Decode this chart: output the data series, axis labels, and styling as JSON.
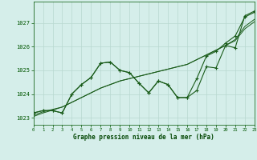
{
  "bg_color": "#d5eeea",
  "grid_color": "#b8d8d0",
  "line_color": "#1a5c1a",
  "marker_color": "#1a5c1a",
  "xlabel": "Graphe pression niveau de la mer (hPa)",
  "xlabel_color": "#004400",
  "tick_color": "#005500",
  "xlim": [
    0,
    23
  ],
  "ylim": [
    1022.7,
    1027.9
  ],
  "yticks": [
    1023,
    1024,
    1025,
    1026,
    1027
  ],
  "xticks": [
    0,
    1,
    2,
    3,
    4,
    5,
    6,
    7,
    8,
    9,
    10,
    11,
    12,
    13,
    14,
    15,
    16,
    17,
    18,
    19,
    20,
    21,
    22,
    23
  ],
  "line1": [
    1023.2,
    1023.3,
    1023.3,
    1023.2,
    1024.0,
    1024.4,
    1024.7,
    1025.3,
    1025.35,
    1025.0,
    1024.9,
    1024.45,
    1024.05,
    1024.55,
    1024.4,
    1023.85,
    1023.85,
    1024.15,
    1025.15,
    1025.1,
    1026.05,
    1025.95,
    1027.3,
    1027.5
  ],
  "line2": [
    1023.2,
    1023.3,
    1023.3,
    1023.2,
    1024.0,
    1024.4,
    1024.7,
    1025.3,
    1025.35,
    1025.0,
    1024.9,
    1024.45,
    1024.05,
    1024.55,
    1024.4,
    1023.85,
    1023.85,
    1024.65,
    1025.6,
    1025.8,
    1026.15,
    1026.45,
    1027.25,
    1027.45
  ],
  "line3_trend": [
    1023.1,
    1023.25,
    1023.35,
    1023.45,
    1023.65,
    1023.85,
    1024.05,
    1024.25,
    1024.4,
    1024.55,
    1024.65,
    1024.75,
    1024.85,
    1024.95,
    1025.05,
    1025.15,
    1025.25,
    1025.45,
    1025.65,
    1025.85,
    1026.05,
    1026.3,
    1026.85,
    1027.15
  ],
  "line4_trend": [
    1023.05,
    1023.2,
    1023.32,
    1023.45,
    1023.65,
    1023.85,
    1024.05,
    1024.25,
    1024.4,
    1024.55,
    1024.65,
    1024.75,
    1024.85,
    1024.95,
    1025.05,
    1025.15,
    1025.25,
    1025.45,
    1025.65,
    1025.85,
    1026.05,
    1026.25,
    1026.75,
    1027.05
  ]
}
